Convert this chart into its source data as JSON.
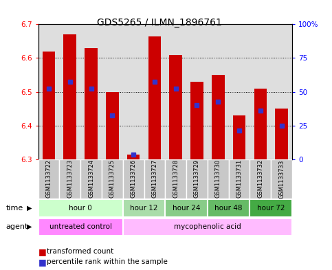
{
  "title": "GDS5265 / ILMN_1896761",
  "samples": [
    "GSM1133722",
    "GSM1133723",
    "GSM1133724",
    "GSM1133725",
    "GSM1133726",
    "GSM1133727",
    "GSM1133728",
    "GSM1133729",
    "GSM1133730",
    "GSM1133731",
    "GSM1133732",
    "GSM1133733"
  ],
  "bar_bottoms": [
    6.3,
    6.3,
    6.3,
    6.3,
    6.3,
    6.3,
    6.3,
    6.3,
    6.3,
    6.3,
    6.3,
    6.3
  ],
  "bar_tops": [
    6.62,
    6.67,
    6.63,
    6.5,
    6.315,
    6.665,
    6.61,
    6.53,
    6.55,
    6.43,
    6.51,
    6.45
  ],
  "percentile_values": [
    6.51,
    6.53,
    6.51,
    6.43,
    6.315,
    6.53,
    6.51,
    6.46,
    6.47,
    6.385,
    6.445,
    6.4
  ],
  "ylim_left": [
    6.3,
    6.7
  ],
  "ylim_right": [
    0,
    100
  ],
  "yticks_left": [
    6.3,
    6.4,
    6.5,
    6.6,
    6.7
  ],
  "yticks_right": [
    0,
    25,
    50,
    75,
    100
  ],
  "ytick_labels_right": [
    "0",
    "25",
    "50",
    "75",
    "100%"
  ],
  "bar_color": "#cc0000",
  "dot_color": "#3333cc",
  "time_groups": [
    {
      "label": "hour 0",
      "start": 0,
      "end": 4,
      "color": "#ccffcc"
    },
    {
      "label": "hour 12",
      "start": 4,
      "end": 6,
      "color": "#aaddaa"
    },
    {
      "label": "hour 24",
      "start": 6,
      "end": 8,
      "color": "#88cc88"
    },
    {
      "label": "hour 48",
      "start": 8,
      "end": 10,
      "color": "#66bb66"
    },
    {
      "label": "hour 72",
      "start": 10,
      "end": 12,
      "color": "#44aa44"
    }
  ],
  "agent_groups": [
    {
      "label": "untreated control",
      "start": 0,
      "end": 4,
      "color": "#ff88ff"
    },
    {
      "label": "mycophenolic acid",
      "start": 4,
      "end": 12,
      "color": "#ffbbff"
    }
  ],
  "legend_bar_label": "transformed count",
  "legend_dot_label": "percentile rank within the sample",
  "xlabel_time": "time",
  "xlabel_agent": "agent",
  "background_color": "#ffffff",
  "sample_bg_color": "#c8c8c8"
}
